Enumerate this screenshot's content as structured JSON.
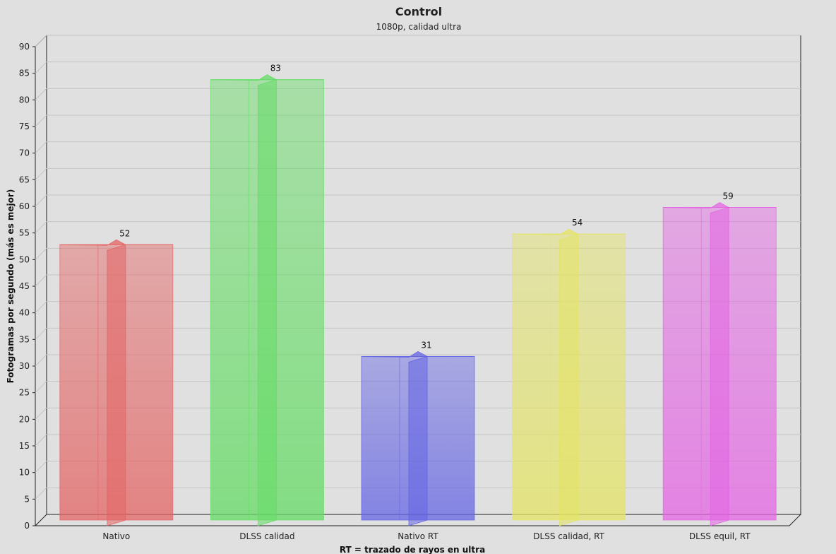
{
  "chart_data": {
    "type": "bar",
    "title": "Control",
    "subtitle": "1080p, calidad ultra",
    "xlabel": "RT = trazado de rayos en ultra",
    "ylabel": "Fotogramas por segundo (más es mejor)",
    "categories": [
      "Nativo",
      "DLSS calidad",
      "Nativo RT",
      "DLSS calidad, RT",
      "DLSS equil, RT"
    ],
    "values": [
      52,
      83,
      31,
      54,
      59
    ],
    "data_labels": [
      "52",
      "83",
      "31",
      "54",
      "59"
    ],
    "colors": [
      "#e46464",
      "#64dc64",
      "#6464e4",
      "#e4e464",
      "#e464e4"
    ],
    "ylim": [
      0,
      90
    ],
    "yticks": [
      "0",
      "5",
      "10",
      "15",
      "20",
      "25",
      "30",
      "35",
      "40",
      "45",
      "50",
      "55",
      "60",
      "65",
      "70",
      "75",
      "80",
      "85",
      "90"
    ],
    "grid": true,
    "legend": "none",
    "style": "3d-translucent"
  }
}
